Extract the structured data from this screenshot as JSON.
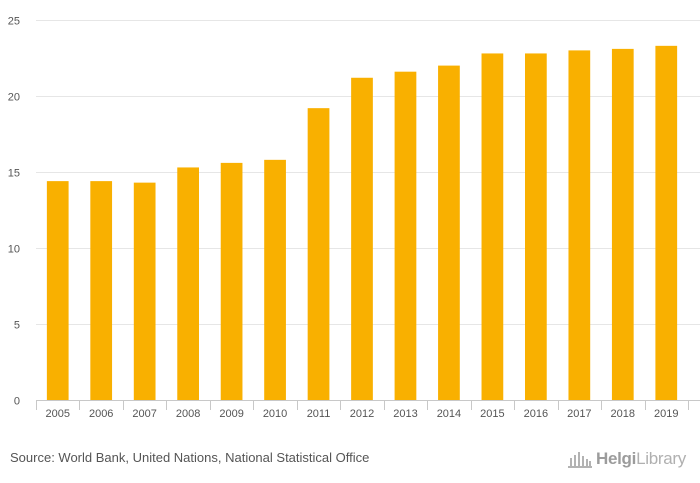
{
  "chart_data": {
    "type": "bar",
    "categories": [
      "2005",
      "2006",
      "2007",
      "2008",
      "2009",
      "2010",
      "2011",
      "2012",
      "2013",
      "2014",
      "2015",
      "2016",
      "2017",
      "2018",
      "2019"
    ],
    "values": [
      14.4,
      14.4,
      14.3,
      15.3,
      15.6,
      15.8,
      19.2,
      21.2,
      21.6,
      22.0,
      22.8,
      22.8,
      23.0,
      23.1,
      23.3
    ],
    "yticks": [
      0,
      5,
      10,
      15,
      20,
      25
    ],
    "ylim": [
      0,
      25
    ],
    "bar_color": "#f9b000",
    "title": "",
    "xlabel": "",
    "ylabel": "",
    "grid": true
  },
  "footer": {
    "source": "Source: World Bank, United Nations, National Statistical Office",
    "logo_brand": "Helgi",
    "logo_suffix": "Library",
    "logo_icon": "library-building-icon"
  }
}
